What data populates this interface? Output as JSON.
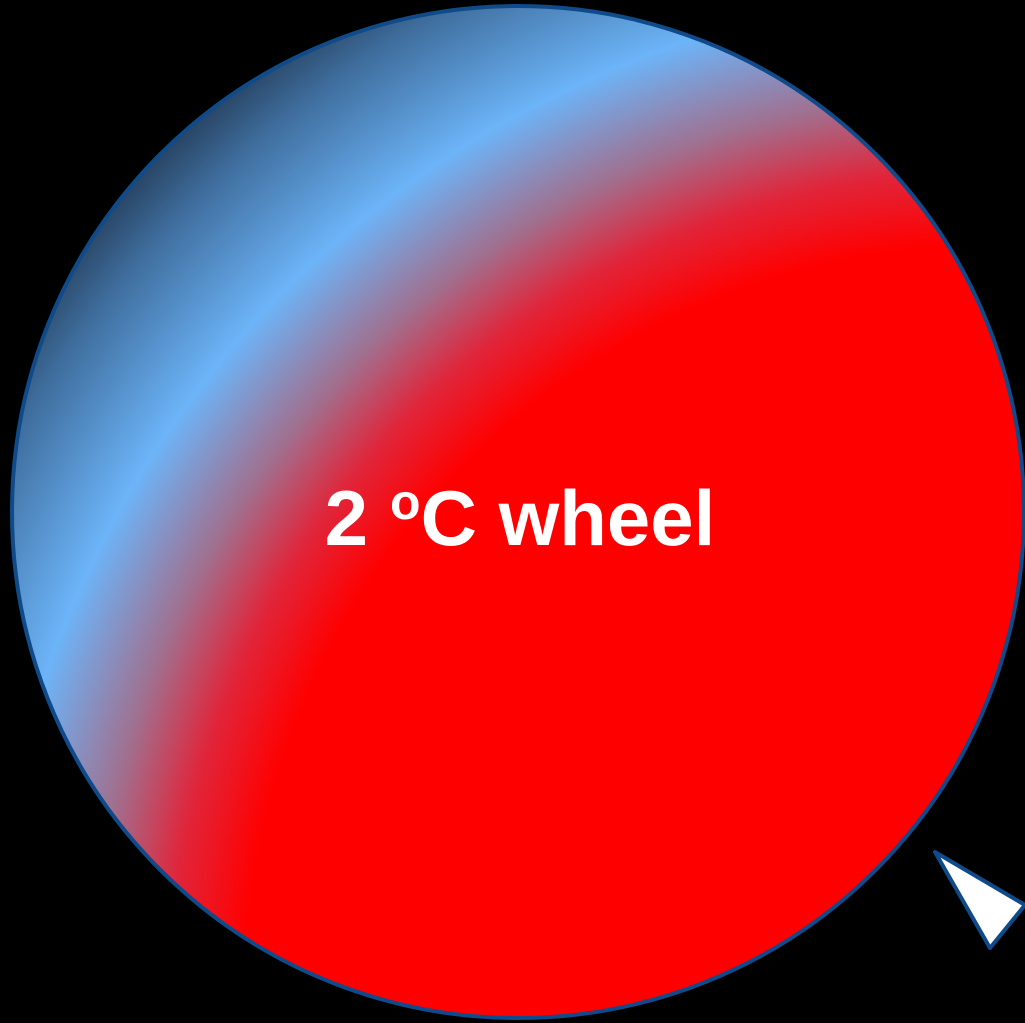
{
  "wheel": {
    "label": {
      "number": "2",
      "degree": "o",
      "unit": "C wheel"
    }
  }
}
